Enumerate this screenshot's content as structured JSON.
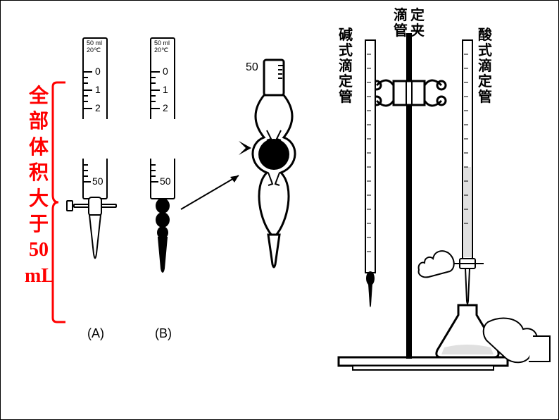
{
  "red_label": {
    "chars": [
      "全",
      "部",
      "体",
      "积",
      "大",
      "于",
      "50",
      "mL"
    ],
    "color": "#ff0000",
    "font_size": 28
  },
  "bracket_color": "#ff0000",
  "burette_spec": {
    "line1": "50 ml",
    "line2": "20℃"
  },
  "burette_A": {
    "top_marks": [
      "0",
      "1",
      "2"
    ],
    "bottom_mark": "50",
    "label": "(A)"
  },
  "burette_B": {
    "top_marks": [
      "0",
      "1",
      "2"
    ],
    "bottom_mark": "50",
    "label": "(B)"
  },
  "zoom_mark": "50",
  "top_labels": {
    "left": [
      "碱",
      "式",
      "滴",
      "定",
      "管"
    ],
    "mid": [
      "滴",
      "定",
      "管",
      "夹"
    ],
    "right": [
      "酸",
      "式",
      "滴",
      "定",
      "管"
    ]
  },
  "colors": {
    "red": "#ff0000",
    "black": "#000000",
    "white": "#ffffff"
  }
}
